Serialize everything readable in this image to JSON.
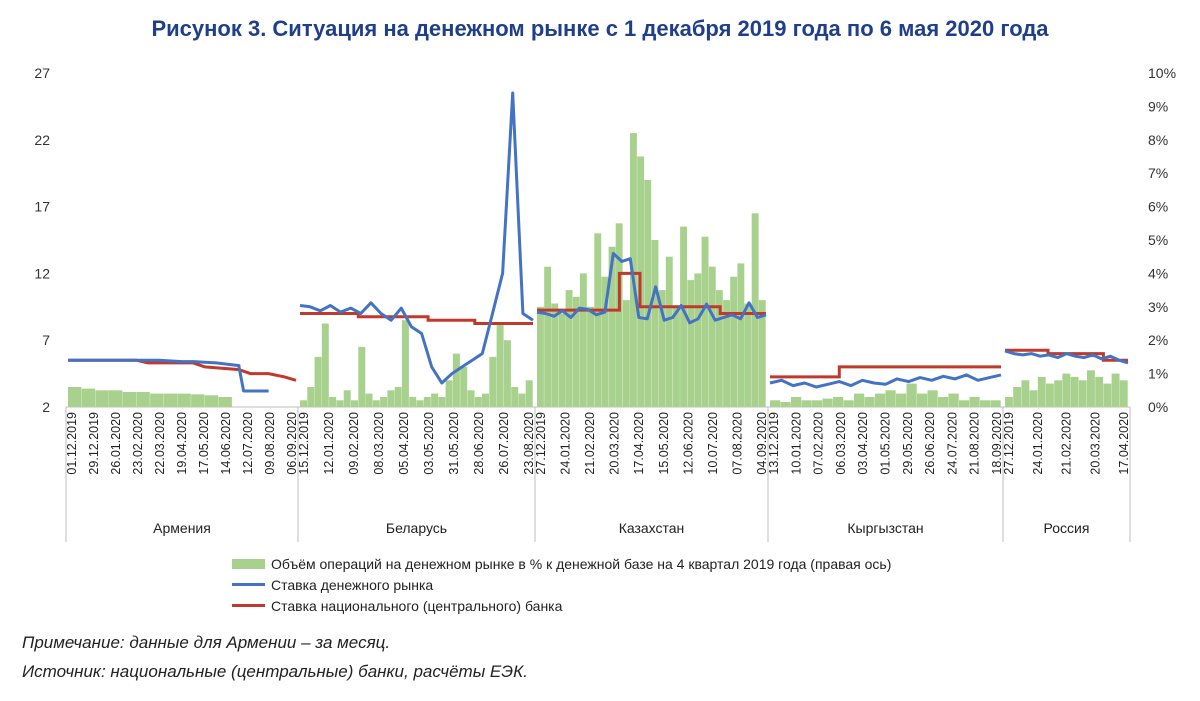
{
  "title": "Рисунок 3. Ситуация на денежном рынке с 1 декабря 2019 года по 6 мая 2020 года",
  "legend": {
    "volume": "Объём операций на денежном рынке в % к денежной базе на 4 квартал 2019 года (правая ось)",
    "market_rate": "Ставка денежного рынка",
    "policy_rate": "Ставка национального (центрального) банка"
  },
  "notes": {
    "note": "Примечание: данные для Армении – за месяц.",
    "source": "Источник: национальные (центральные) банки, расчёты ЕЭК."
  },
  "colors": {
    "volume": "#a9d18e",
    "market_rate": "#4472c4",
    "policy_rate": "#c0392b",
    "title": "#1f3f8a"
  },
  "chart_data": {
    "type": "bar+line",
    "left_axis": {
      "ticks": [
        2,
        7,
        12,
        17,
        22,
        27
      ],
      "ylim": [
        2,
        27
      ]
    },
    "right_axis": {
      "ticks": [
        "0%",
        "1%",
        "2%",
        "3%",
        "4%",
        "5%",
        "6%",
        "7%",
        "8%",
        "9%",
        "10%"
      ],
      "ylim": [
        0,
        10
      ],
      "unit": "%"
    },
    "groups": [
      {
        "name": "Армения",
        "x_labels": [
          "01.12.2019",
          "29.12.2019",
          "26.01.2020",
          "23.02.2020",
          "22.03.2020",
          "19.04.2020",
          "17.05.2020",
          "14.06.2020",
          "12.07.2020",
          "09.08.2020",
          "06.09.2020"
        ],
        "market_rate": [
          5.5,
          5.5,
          5.5,
          5.5,
          5.5,
          5.4,
          5.4,
          5.3,
          5.1,
          5.0,
          3.2,
          3.2,
          3.2
        ],
        "market_rate_x": [
          0.0,
          0.1,
          0.2,
          0.3,
          0.4,
          0.5,
          0.55,
          0.65,
          0.75,
          0.75,
          0.77,
          0.85,
          0.88
        ],
        "policy_rate": [
          5.5,
          5.5,
          5.3,
          5.3,
          5.0,
          4.8,
          4.5,
          4.5,
          4.25,
          4.0
        ],
        "policy_rate_x": [
          0.0,
          0.3,
          0.35,
          0.55,
          0.6,
          0.75,
          0.8,
          0.88,
          0.95,
          1.0
        ],
        "volume": [
          0.6,
          0.55,
          0.5,
          0.5,
          0.45,
          0.45,
          0.4,
          0.4,
          0.4,
          0.38,
          0.35,
          0.3,
          0.0,
          0.0,
          0.0
        ],
        "volume_x_end": 0.9
      },
      {
        "name": "Беларусь",
        "x_labels": [
          "15.12.2019",
          "12.01.2020",
          "09.02.2020",
          "08.03.2020",
          "05.04.2020",
          "03.05.2020",
          "31.05.2020",
          "28.06.2020",
          "26.07.2020",
          "23.08.2020"
        ],
        "market_rate": [
          9.6,
          9.5,
          9.2,
          9.6,
          9.1,
          9.4,
          9.0,
          9.8,
          9.0,
          8.5,
          9.4,
          8.0,
          7.5,
          5.0,
          3.8,
          4.5,
          5.0,
          5.5,
          6.0,
          9.0,
          12.0,
          25.5,
          9.0,
          8.5
        ],
        "policy_rate": [
          9.0,
          9.0,
          8.75,
          8.75,
          8.5,
          8.5,
          8.25,
          8.25
        ],
        "policy_rate_x": [
          0.0,
          0.25,
          0.25,
          0.55,
          0.55,
          0.75,
          0.75,
          1.0
        ],
        "volume": [
          0.2,
          0.6,
          1.5,
          2.5,
          0.3,
          0.2,
          0.5,
          0.2,
          1.8,
          0.4,
          0.2,
          0.3,
          0.5,
          0.6,
          2.6,
          0.3,
          0.2,
          0.3,
          0.4,
          0.3,
          0.8,
          1.6,
          1.2,
          0.5,
          0.3,
          0.4,
          1.5,
          2.5,
          2.0,
          0.6,
          0.4,
          0.8
        ]
      },
      {
        "name": "Казахстан",
        "x_labels": [
          "27.12.2019",
          "24.01.2020",
          "21.02.2020",
          "20.03.2020",
          "17.04.2020",
          "15.05.2020",
          "12.06.2020",
          "10.07.2020",
          "07.08.2020",
          "04.09.2020"
        ],
        "market_rate": [
          9.1,
          9.0,
          8.8,
          9.2,
          8.7,
          9.4,
          9.3,
          8.9,
          9.1,
          13.5,
          12.9,
          13.1,
          8.7,
          8.6,
          11.0,
          8.5,
          8.7,
          9.6,
          8.3,
          8.6,
          9.7,
          8.5,
          8.7,
          8.9,
          8.6,
          9.8,
          8.7,
          8.9
        ],
        "policy_rate": [
          9.25,
          9.25,
          12.0,
          12.0,
          9.5,
          9.5,
          9.0,
          9.0
        ],
        "policy_rate_x": [
          0.0,
          0.36,
          0.36,
          0.45,
          0.45,
          0.8,
          0.8,
          1.0
        ],
        "volume": [
          3.0,
          4.2,
          3.1,
          2.8,
          3.5,
          3.3,
          4.0,
          3.0,
          5.2,
          3.9,
          4.8,
          5.5,
          3.2,
          8.2,
          7.5,
          6.8,
          5.0,
          3.5,
          4.5,
          3.0,
          5.4,
          3.8,
          4.0,
          5.1,
          4.2,
          3.5,
          3.2,
          3.9,
          4.3,
          3.1,
          5.8,
          3.2
        ]
      },
      {
        "name": "Кыргызстан",
        "x_labels": [
          "13.12.2019",
          "10.01.2020",
          "07.02.2020",
          "06.03.2020",
          "03.04.2020",
          "01.05.2020",
          "29.05.2020",
          "26.06.2020",
          "24.07.2020",
          "21.08.2020",
          "18.09.2020"
        ],
        "market_rate": [
          3.8,
          4.0,
          3.6,
          3.8,
          3.5,
          3.7,
          3.9,
          3.6,
          4.0,
          3.8,
          3.7,
          4.1,
          3.9,
          4.2,
          4.0,
          4.3,
          4.1,
          4.4,
          4.0,
          4.2,
          4.4
        ],
        "policy_rate": [
          4.25,
          4.25,
          5.0,
          5.0
        ],
        "policy_rate_x": [
          0.0,
          0.3,
          0.3,
          1.0
        ],
        "volume": [
          0.2,
          0.15,
          0.3,
          0.2,
          0.2,
          0.25,
          0.3,
          0.2,
          0.4,
          0.3,
          0.4,
          0.5,
          0.4,
          0.7,
          0.4,
          0.5,
          0.3,
          0.4,
          0.2,
          0.3,
          0.2,
          0.2
        ]
      },
      {
        "name": "Россия",
        "x_labels": [
          "27.12.2019",
          "24.01.2020",
          "21.02.2020",
          "20.03.2020",
          "17.04.2020"
        ],
        "market_rate": [
          6.2,
          6.0,
          5.9,
          6.0,
          5.8,
          5.9,
          5.7,
          6.0,
          5.8,
          5.7,
          5.9,
          5.6,
          5.8,
          5.5,
          5.3
        ],
        "policy_rate": [
          6.25,
          6.25,
          6.0,
          6.0,
          5.5,
          5.5
        ],
        "policy_rate_x": [
          0.0,
          0.35,
          0.35,
          0.8,
          0.8,
          1.0
        ],
        "volume": [
          0.3,
          0.6,
          0.8,
          0.5,
          0.9,
          0.7,
          0.8,
          1.0,
          0.9,
          0.8,
          1.1,
          0.9,
          0.7,
          1.0,
          0.8
        ]
      }
    ]
  }
}
